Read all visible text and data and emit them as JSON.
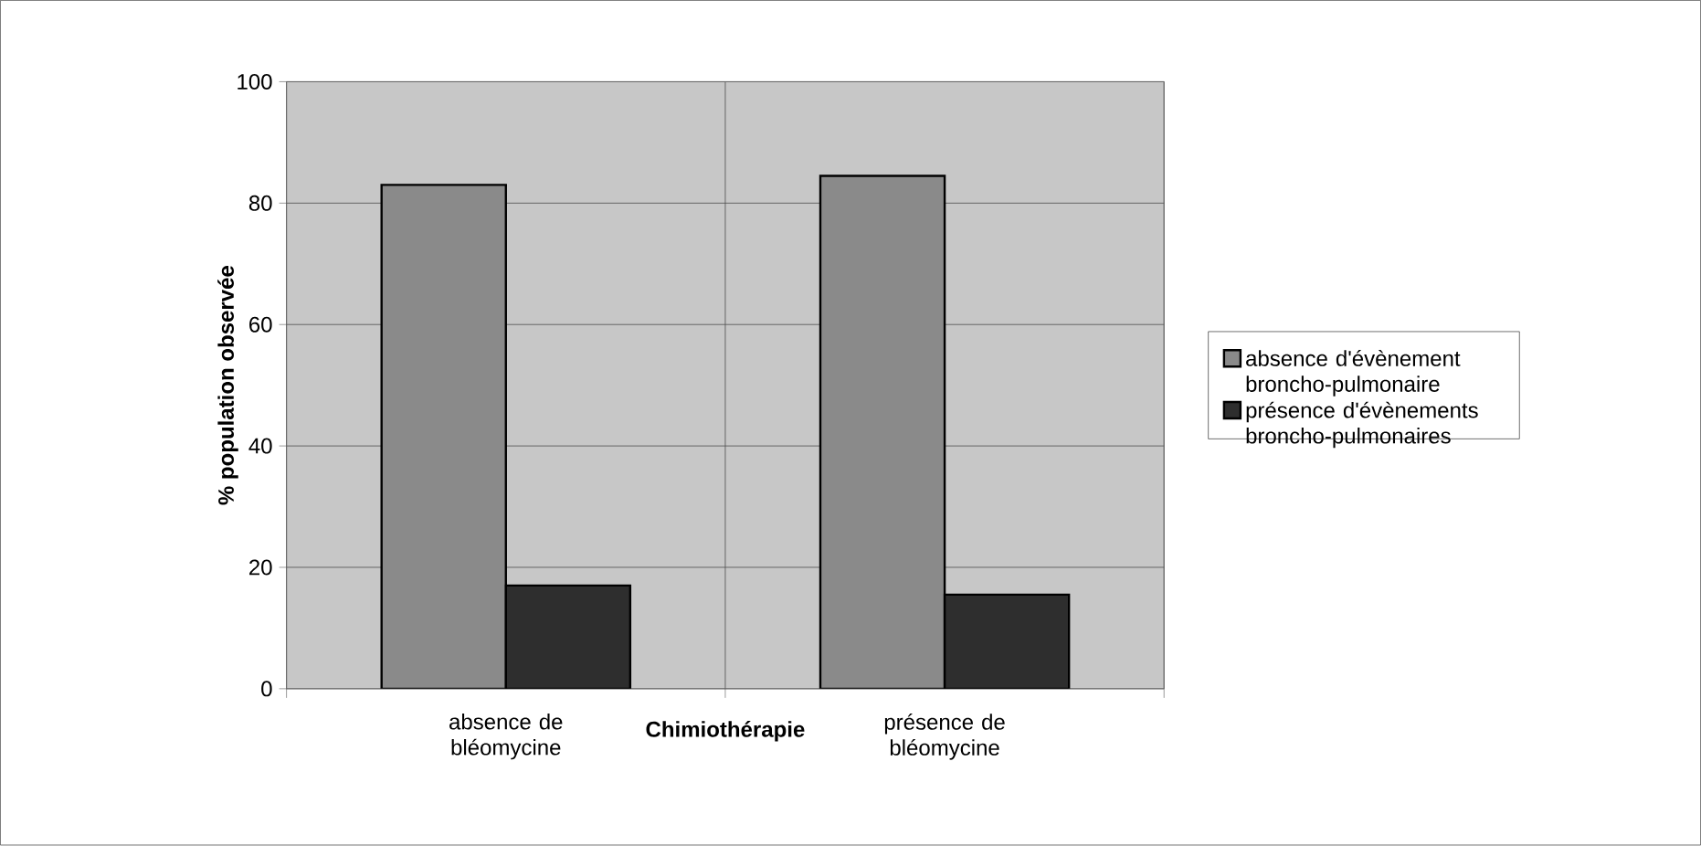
{
  "chart_data": {
    "type": "bar",
    "xlabel": "Chimiothérapie",
    "ylabel": "% population observée",
    "categories": [
      "absence de bléomycine",
      "présence de bléomycine"
    ],
    "series": [
      {
        "name": "absence d'évènement broncho-pulmonaire",
        "color": "#8a8a8a",
        "values": [
          83,
          84.5
        ]
      },
      {
        "name": "présence d'évènements broncho-pulmonaires",
        "color": "#2e2e2e",
        "values": [
          17,
          15.5
        ]
      }
    ],
    "ylim": [
      0,
      100
    ],
    "yticks": [
      0,
      20,
      40,
      60,
      80,
      100
    ],
    "grid": true,
    "legend": "right"
  }
}
